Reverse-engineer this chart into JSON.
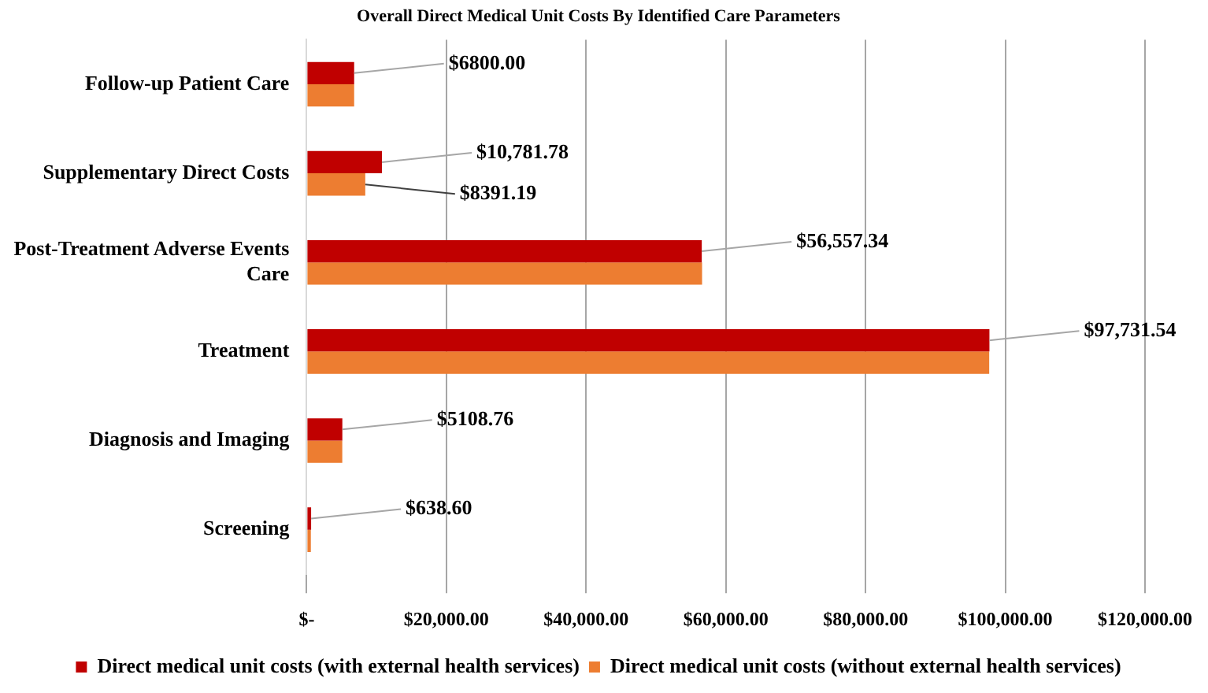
{
  "chart_data": {
    "type": "bar",
    "orientation": "horizontal",
    "title": "Overall Direct Medical Unit Costs By Identified Care Parameters",
    "categories": [
      "Follow-up Patient Care",
      "Supplementary Direct Costs",
      "Post-Treatment Adverse Events Care",
      "Treatment",
      "Diagnosis and Imaging",
      "Screening"
    ],
    "series": [
      {
        "name": "Direct medical unit costs (with external health services)",
        "color": "#c00000",
        "values": [
          6800,
          10781.78,
          56557.34,
          97731.54,
          5108.76,
          638.6
        ],
        "value_labels": [
          "$6800.00",
          "$10,781.78",
          "$56,557.34",
          "$97,731.54",
          "$5108.76",
          "$638.60"
        ]
      },
      {
        "name": "Direct medical unit costs (without external health services)",
        "color": "#ed7d31",
        "values": [
          6800,
          8391.19,
          56600,
          97700,
          5100,
          600
        ],
        "value_labels": [
          null,
          "$8391.19",
          null,
          null,
          null,
          null
        ]
      }
    ],
    "xlim": [
      0,
      120000
    ],
    "xticks": [
      {
        "value": 0,
        "label": "$-"
      },
      {
        "value": 20000,
        "label": "$20,000.00"
      },
      {
        "value": 40000,
        "label": "$40,000.00"
      },
      {
        "value": 60000,
        "label": "$60,000.00"
      },
      {
        "value": 80000,
        "label": "$80,000.00"
      },
      {
        "value": 100000,
        "label": "$100,000.00"
      },
      {
        "value": 120000,
        "label": "$120,000.00"
      }
    ],
    "grid": "x",
    "legend": "bottom"
  }
}
